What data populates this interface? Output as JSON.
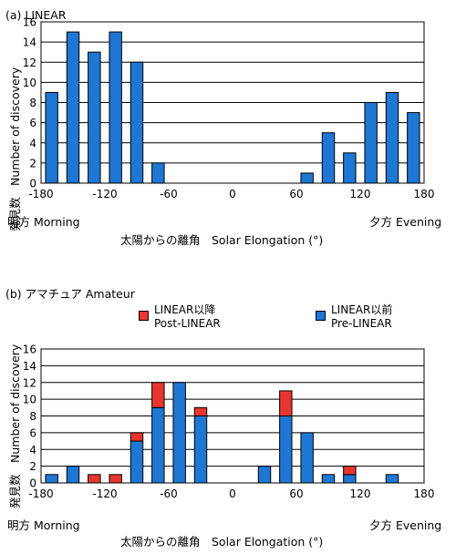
{
  "colors": {
    "pre_linear": "#1f77d4",
    "post_linear": "#e8362e",
    "grid": "#000000"
  },
  "chart_data": [
    {
      "type": "bar",
      "title": "(a) LINEAR",
      "ylabel": "発見数　Number of discovery",
      "xlabel": "太陽からの離角　Solar Elongation (°)",
      "x_side_left": "明方 Morning",
      "x_side_right": "夕方 Evening",
      "xlim": [
        -180,
        180
      ],
      "ylim": [
        0,
        16
      ],
      "xticks": [
        -180,
        -120,
        -60,
        0,
        60,
        120,
        180
      ],
      "yticks": [
        0,
        2,
        4,
        6,
        8,
        10,
        12,
        14,
        16
      ],
      "grid": true,
      "bin_width": 20,
      "x": [
        -170,
        -150,
        -130,
        -110,
        -90,
        -70,
        70,
        90,
        110,
        130,
        150,
        170
      ],
      "series": [
        {
          "values": [
            9,
            15,
            13,
            15,
            12,
            2,
            1,
            5,
            3,
            8,
            9,
            7
          ]
        }
      ]
    },
    {
      "type": "bar",
      "stacked": true,
      "title": "(b) アマチュア Amateur",
      "ylabel": "発見数　Number of discovery",
      "xlabel": "太陽からの離角　Solar Elongation (°)",
      "x_side_left": "明方 Morning",
      "x_side_right": "夕方 Evening",
      "xlim": [
        -180,
        180
      ],
      "ylim": [
        0,
        16
      ],
      "xticks": [
        -180,
        -120,
        -60,
        0,
        60,
        120,
        180
      ],
      "yticks": [
        0,
        2,
        4,
        6,
        8,
        10,
        12,
        14,
        16
      ],
      "grid": true,
      "bin_width": 20,
      "legend": "top",
      "x": [
        -170,
        -150,
        -130,
        -110,
        -90,
        -70,
        -50,
        -30,
        30,
        50,
        70,
        90,
        110,
        150
      ],
      "series": [
        {
          "name": "LINEAR以前\nPre-LINEAR",
          "values": [
            1,
            2,
            0,
            0,
            5,
            9,
            12,
            8,
            2,
            8,
            6,
            1,
            1,
            1
          ]
        },
        {
          "name": "LINEAR以降\nPost-LINEAR",
          "values": [
            0,
            0,
            1,
            1,
            1,
            3,
            0,
            1,
            0,
            3,
            0,
            0,
            1,
            0
          ]
        }
      ],
      "legend_labels": {
        "post_line1": "LINEAR以降",
        "post_line2": "Post-LINEAR",
        "pre_line1": "LINEAR以前",
        "pre_line2": "Pre-LINEAR"
      }
    }
  ]
}
